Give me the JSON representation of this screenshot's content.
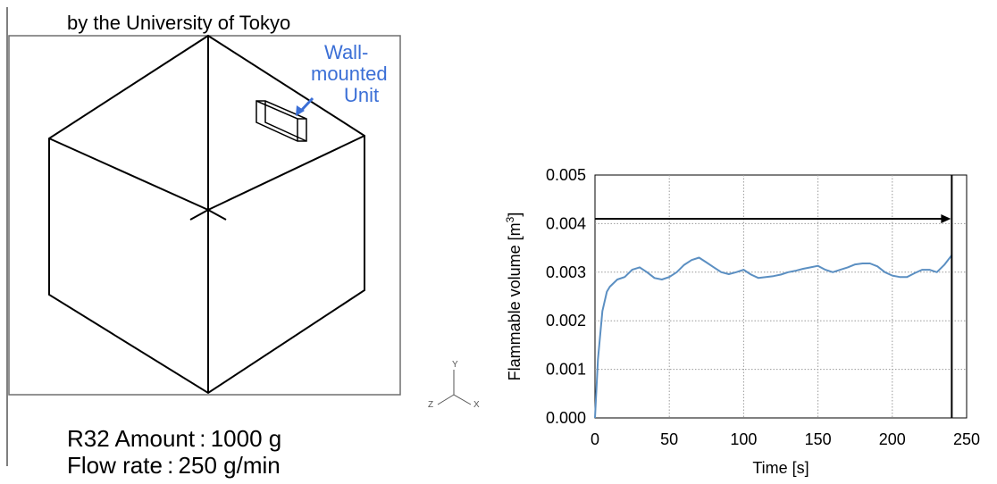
{
  "left_panel": {
    "header": "by the University of Tokyo",
    "callout": [
      "Wall-",
      "mounted",
      "Unit"
    ],
    "axes_triad": {
      "x": "X",
      "y": "Y",
      "z": "Z"
    },
    "caption_line1": "R32  Amount : 1000 g",
    "caption_line2": "Flow rate : 250 g/min"
  },
  "colors": {
    "callout_text": "#3b6fd6",
    "series_line": "#5b8fc2",
    "axis": "#000000",
    "grid": "#9a9a9a"
  },
  "chart_data": {
    "type": "line",
    "xlabel": "Time [s]",
    "ylabel_main": "Flammable volume [m",
    "ylabel_sup": "3",
    "ylabel_end": "]",
    "xlim": [
      0,
      250
    ],
    "ylim": [
      0,
      0.005
    ],
    "x_ticks": [
      0,
      50,
      100,
      150,
      200,
      250
    ],
    "x_tick_labels": [
      "0",
      "50",
      "100",
      "150",
      "200",
      "250"
    ],
    "y_ticks": [
      0,
      0.001,
      0.002,
      0.003,
      0.004,
      0.005
    ],
    "y_tick_labels": [
      "0.000",
      "0.001",
      "0.002",
      "0.003",
      "0.004",
      "0.005"
    ],
    "grid": true,
    "arrow": {
      "from_x": 0,
      "to_x": 240,
      "y": 0.0041
    },
    "end_marker_x": 240,
    "series": [
      {
        "x": [
          0,
          2,
          5,
          8,
          10,
          15,
          20,
          25,
          30,
          35,
          40,
          45,
          50,
          55,
          60,
          65,
          70,
          75,
          80,
          85,
          90,
          95,
          100,
          105,
          110,
          115,
          120,
          125,
          130,
          135,
          140,
          145,
          150,
          155,
          160,
          165,
          170,
          175,
          180,
          185,
          190,
          195,
          200,
          205,
          210,
          215,
          220,
          225,
          230,
          235,
          240
        ],
        "y": [
          0.0,
          0.0012,
          0.0022,
          0.0026,
          0.0027,
          0.00285,
          0.0029,
          0.00305,
          0.0031,
          0.003,
          0.00288,
          0.00285,
          0.0029,
          0.003,
          0.00315,
          0.00325,
          0.0033,
          0.0032,
          0.0031,
          0.003,
          0.00296,
          0.003,
          0.00305,
          0.00295,
          0.00288,
          0.0029,
          0.00292,
          0.00295,
          0.003,
          0.00303,
          0.00307,
          0.0031,
          0.00313,
          0.00305,
          0.003,
          0.00305,
          0.0031,
          0.00316,
          0.00318,
          0.00318,
          0.00312,
          0.003,
          0.00293,
          0.0029,
          0.0029,
          0.00298,
          0.00305,
          0.00305,
          0.003,
          0.00315,
          0.00335
        ]
      }
    ]
  }
}
